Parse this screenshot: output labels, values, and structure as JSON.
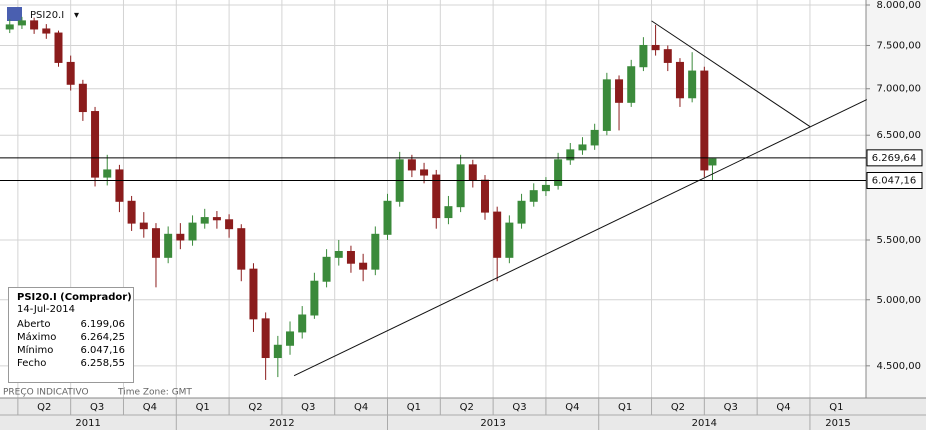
{
  "chart_data": {
    "type": "candlestick",
    "symbol": "PSI20.I",
    "footnote": "PREÇO INDICATIVO",
    "timezone": "Time Zone: GMT",
    "log_scale": true,
    "grid": true,
    "up_color": "#3b8a3b",
    "down_color": "#8b1c1c",
    "x": [
      -2,
      1,
      4,
      7,
      10,
      13,
      16,
      19,
      22,
      25,
      28,
      31,
      34,
      37,
      40,
      43,
      46,
      49,
      52,
      55,
      58,
      61,
      64,
      67,
      70,
      73,
      76,
      79,
      82,
      85,
      88,
      91,
      94,
      97,
      100,
      103,
      106,
      109,
      112,
      115,
      118,
      121,
      124,
      127,
      130,
      133,
      136,
      139,
      142,
      145,
      148,
      151,
      154,
      157,
      160,
      163,
      166,
      169,
      171
    ],
    "open": [
      7700,
      7750,
      7800,
      7700,
      7650,
      7300,
      7050,
      6750,
      6080,
      6150,
      5850,
      5650,
      5600,
      5350,
      5550,
      5500,
      5650,
      5700,
      5680,
      5600,
      5250,
      4850,
      4560,
      4650,
      4750,
      4880,
      5150,
      5350,
      5400,
      5300,
      5250,
      5550,
      5850,
      6250,
      6150,
      6100,
      5700,
      5800,
      6200,
      6050,
      5750,
      5350,
      5650,
      5850,
      5950,
      6000,
      6250,
      6350,
      6400,
      6550,
      7100,
      6850,
      7250,
      7500,
      7450,
      7300,
      6900,
      7200,
      6199.06
    ],
    "high": [
      7820,
      7850,
      7840,
      7760,
      7680,
      7380,
      7100,
      6800,
      6300,
      6200,
      5900,
      5750,
      5650,
      5620,
      5650,
      5720,
      5780,
      5760,
      5730,
      5640,
      5300,
      4900,
      4720,
      4830,
      4950,
      5220,
      5420,
      5500,
      5450,
      5380,
      5620,
      5920,
      6330,
      6300,
      6220,
      6150,
      5900,
      6300,
      6250,
      6100,
      5800,
      5720,
      5920,
      6020,
      6080,
      6320,
      6420,
      6480,
      6620,
      7180,
      7150,
      7330,
      7600,
      7750,
      7500,
      7350,
      7420,
      7250,
      6264.25
    ],
    "low": [
      7650,
      7700,
      7640,
      7580,
      7250,
      6980,
      6650,
      5990,
      6000,
      5750,
      5580,
      5520,
      5100,
      5300,
      5420,
      5450,
      5600,
      5600,
      5520,
      5150,
      4750,
      4400,
      4420,
      4580,
      4700,
      4850,
      5100,
      5280,
      5220,
      5150,
      5200,
      5500,
      5800,
      6080,
      6020,
      5600,
      5640,
      5750,
      5980,
      5680,
      5150,
      5300,
      5600,
      5800,
      5900,
      5960,
      6200,
      6300,
      6350,
      6500,
      6550,
      6800,
      7200,
      7380,
      7200,
      6800,
      6850,
      6080,
      6047.16
    ],
    "close": [
      7750,
      7800,
      7700,
      7650,
      7300,
      7050,
      6750,
      6080,
      6150,
      5850,
      5650,
      5600,
      5350,
      5550,
      5500,
      5650,
      5700,
      5680,
      5600,
      5250,
      4850,
      4560,
      4650,
      4750,
      4880,
      5150,
      5350,
      5400,
      5300,
      5250,
      5550,
      5850,
      6250,
      6150,
      6100,
      5700,
      5800,
      6200,
      6050,
      5750,
      5350,
      5650,
      5850,
      5950,
      6000,
      6250,
      6350,
      6400,
      6550,
      7100,
      6850,
      7250,
      7500,
      7450,
      7300,
      6900,
      7200,
      6150,
      6258.55
    ],
    "xlim": [
      -4.4,
      208.8
    ],
    "ylim": [
      4275,
      8064
    ],
    "yticks": [
      {
        "value": 8000,
        "label": "8.000,00"
      },
      {
        "value": 7500,
        "label": "7.500,00"
      },
      {
        "value": 7000,
        "label": "7.000,00"
      },
      {
        "value": 6500,
        "label": "6.500,00"
      },
      {
        "value": 5500,
        "label": "5.500,00"
      },
      {
        "value": 5000,
        "label": "5.000,00"
      },
      {
        "value": 4500,
        "label": "4.500,00"
      }
    ],
    "quarters": [
      "Q2",
      "Q3",
      "Q4",
      "Q1",
      "Q2",
      "Q3",
      "Q4",
      "Q1",
      "Q2",
      "Q3",
      "Q4",
      "Q1",
      "Q2",
      "Q3",
      "Q4",
      "Q1"
    ],
    "years": [
      "2011",
      "2012",
      "2013",
      "2014",
      "2015"
    ],
    "levels": {
      "values": [
        6269.64,
        6047.16
      ],
      "value_labels": [
        "6.269,64",
        "6.047,16"
      ],
      "color": "#000000"
    },
    "trendlines": [
      {
        "x": [
          68,
          209
        ],
        "y": [
          4430,
          6880
        ]
      },
      {
        "x": [
          156,
          195
        ],
        "y": [
          7800,
          6590
        ]
      }
    ],
    "info": {
      "title": "PSI20.I (Comprador)",
      "date": "14-Jul-2014",
      "rows": [
        [
          "Aberto",
          "6.199,06"
        ],
        [
          "Máximo",
          "6.264,25"
        ],
        [
          "Mínimo",
          "6.047,16"
        ],
        [
          "Fecho",
          "6.258,55"
        ]
      ]
    }
  }
}
